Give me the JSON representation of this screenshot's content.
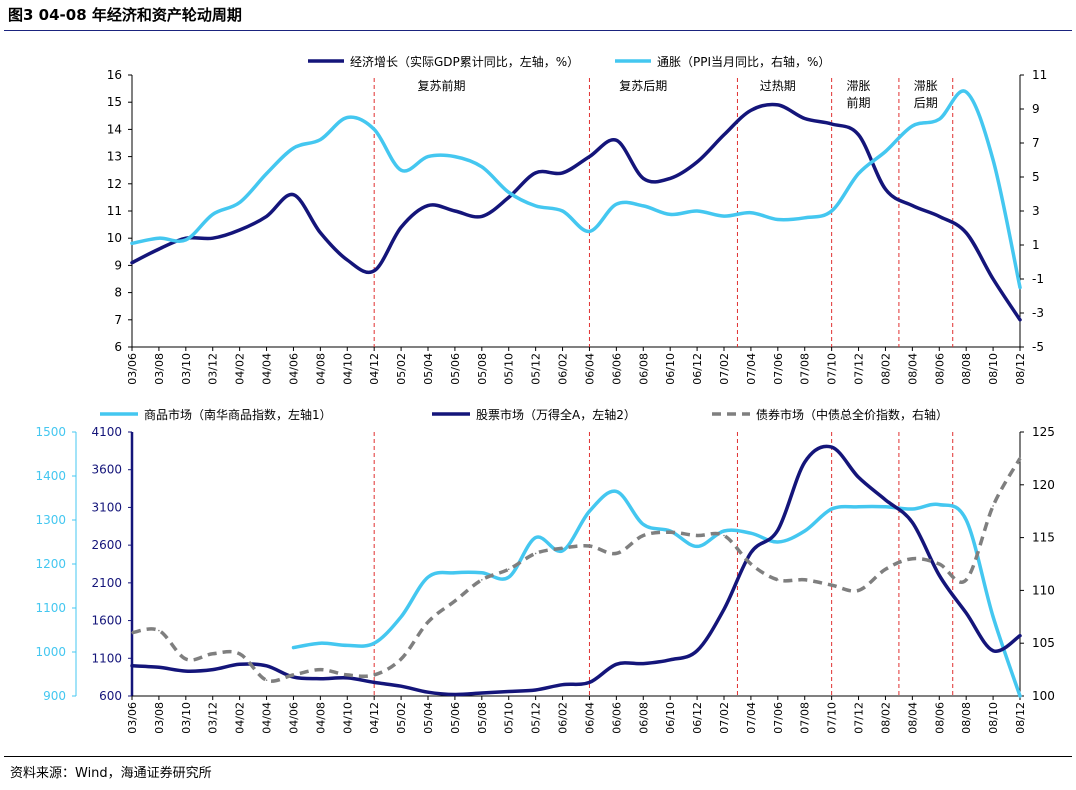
{
  "header": {
    "title": "图3  04-08 年经济和资产轮动周期"
  },
  "footer": {
    "source": "资料来源：Wind，海通证券研究所"
  },
  "colors": {
    "navy": "#14157a",
    "cyan": "#44c7f0",
    "gray": "#7f7f7f",
    "red": "#e03030",
    "title_rule": "#1a237e"
  },
  "chart_data": [
    {
      "type": "line",
      "panel": "top",
      "categories": [
        "03/06",
        "03/08",
        "03/10",
        "03/12",
        "04/02",
        "04/04",
        "04/06",
        "04/08",
        "04/10",
        "04/12",
        "05/02",
        "05/04",
        "05/06",
        "05/08",
        "05/10",
        "05/12",
        "06/02",
        "06/04",
        "06/06",
        "06/08",
        "06/10",
        "06/12",
        "07/02",
        "07/04",
        "07/06",
        "07/08",
        "07/10",
        "07/12",
        "08/02",
        "08/04",
        "08/06",
        "08/08",
        "08/10",
        "08/12"
      ],
      "y_left": {
        "min": 6,
        "max": 16,
        "ticks": [
          6,
          7,
          8,
          9,
          10,
          11,
          12,
          13,
          14,
          15,
          16
        ]
      },
      "y_right": {
        "min": -5,
        "max": 11,
        "ticks": [
          -5,
          -3,
          -1,
          1,
          3,
          5,
          7,
          9,
          11
        ]
      },
      "phase_markers": [
        "04/12",
        "06/04",
        "07/03",
        "07/10",
        "08/03",
        "08/07"
      ],
      "phases": [
        {
          "label": "复苏前期",
          "at": "05/05"
        },
        {
          "label": "复苏后期",
          "at": "06/08"
        },
        {
          "label": "过热期",
          "at": "07/06"
        },
        {
          "label": "滞胀\n前期",
          "at": "07/12"
        },
        {
          "label": "滞胀\n后期",
          "at": "08/05"
        }
      ],
      "series": [
        {
          "name": "经济增长（实际GDP累计同比，左轴，%）",
          "axis": "left",
          "color": "#14157a",
          "values": [
            9.1,
            9.6,
            10.0,
            10.0,
            10.3,
            10.8,
            11.6,
            10.2,
            9.2,
            8.8,
            10.4,
            11.2,
            11.0,
            10.8,
            11.5,
            12.4,
            12.4,
            13.0,
            13.6,
            12.2,
            12.2,
            12.8,
            13.8,
            14.7,
            14.9,
            14.4,
            14.2,
            13.8,
            11.8,
            11.2,
            10.8,
            10.2,
            8.5,
            7.0
          ]
        },
        {
          "name": "通胀（PPI当月同比，右轴，%）",
          "axis": "right",
          "color": "#44c7f0",
          "values": [
            1.1,
            1.4,
            1.3,
            2.8,
            3.5,
            5.2,
            6.7,
            7.2,
            8.5,
            7.8,
            5.4,
            6.2,
            6.2,
            5.6,
            4.1,
            3.3,
            3.0,
            1.8,
            3.4,
            3.3,
            2.8,
            3.0,
            2.7,
            2.9,
            2.5,
            2.6,
            3.0,
            5.2,
            6.5,
            8.0,
            8.4,
            10.0,
            6.0,
            -1.5
          ]
        }
      ]
    },
    {
      "type": "line",
      "panel": "bottom",
      "categories": [
        "03/06",
        "03/08",
        "03/10",
        "03/12",
        "04/02",
        "04/04",
        "04/06",
        "04/08",
        "04/10",
        "04/12",
        "05/02",
        "05/04",
        "05/06",
        "05/08",
        "05/10",
        "05/12",
        "06/02",
        "06/04",
        "06/06",
        "06/08",
        "06/10",
        "06/12",
        "07/02",
        "07/04",
        "07/06",
        "07/08",
        "07/10",
        "07/12",
        "08/02",
        "08/04",
        "08/06",
        "08/08",
        "08/10",
        "08/12"
      ],
      "axis_commodity": {
        "min": 900,
        "max": 1500,
        "ticks": [
          900,
          1000,
          1100,
          1200,
          1300,
          1400,
          1500
        ]
      },
      "axis_stock": {
        "min": 600,
        "max": 4100,
        "ticks": [
          600,
          1100,
          1600,
          2100,
          2600,
          3100,
          3600,
          4100
        ]
      },
      "axis_bond": {
        "min": 100,
        "max": 125,
        "ticks": [
          100,
          105,
          110,
          115,
          120,
          125
        ]
      },
      "phase_markers": [
        "04/12",
        "06/04",
        "07/03",
        "07/10",
        "08/03",
        "08/07"
      ],
      "series": [
        {
          "name": "商品市场（南华商品指数，左轴1）",
          "axis": "commodity",
          "color": "#44c7f0",
          "start": "04/06",
          "values": [
            null,
            null,
            null,
            null,
            null,
            null,
            1010,
            1020,
            1015,
            1020,
            1080,
            1170,
            1180,
            1180,
            1170,
            1260,
            1230,
            1320,
            1365,
            1290,
            1275,
            1240,
            1275,
            1270,
            1250,
            1275,
            1325,
            1330,
            1330,
            1325,
            1335,
            1300,
            1080,
            900
          ]
        },
        {
          "name": "股票市场（万得全A，左轴2）",
          "axis": "stock",
          "color": "#14157a",
          "values": [
            1000,
            980,
            930,
            950,
            1020,
            1000,
            850,
            830,
            840,
            780,
            730,
            650,
            620,
            640,
            660,
            680,
            750,
            780,
            1020,
            1030,
            1080,
            1200,
            1750,
            2500,
            2800,
            3700,
            3900,
            3500,
            3200,
            2900,
            2200,
            1700,
            1200,
            1400
          ]
        },
        {
          "name": "债券市场（中债总全价指数，右轴）",
          "axis": "bond",
          "color": "#7f7f7f",
          "dashed": true,
          "values": [
            106,
            106.2,
            103.5,
            104,
            104,
            101.5,
            102,
            102.5,
            102,
            102,
            103.5,
            107,
            109,
            111,
            112,
            113.5,
            114,
            114.2,
            113.5,
            115.2,
            115.5,
            115.2,
            115.2,
            112.5,
            111,
            111,
            110.5,
            110,
            112,
            113,
            112.5,
            111,
            118,
            122.5
          ]
        }
      ]
    }
  ]
}
